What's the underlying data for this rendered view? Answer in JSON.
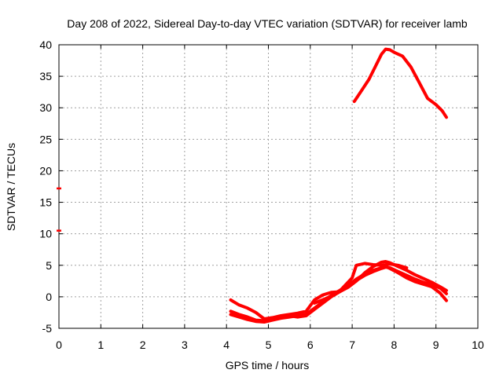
{
  "chart_data": {
    "type": "scatter",
    "title": "Day 208 of 2022, Sidereal Day-to-day VTEC variation (SDTVAR) for receiver lamb",
    "xlabel": "GPS time / hours",
    "ylabel": "SDTVAR / TECUs",
    "xlim": [
      0,
      10
    ],
    "ylim": [
      -5,
      40
    ],
    "x_ticks": [
      0,
      1,
      2,
      3,
      4,
      5,
      6,
      7,
      8,
      9,
      10
    ],
    "y_ticks": [
      -5,
      0,
      5,
      10,
      15,
      20,
      25,
      30,
      35,
      40
    ],
    "grid": true,
    "series_color": "#ff0000",
    "series": [
      {
        "name": "isolated-1",
        "x": [
          0.0
        ],
        "y": [
          17.2
        ]
      },
      {
        "name": "isolated-2",
        "x": [
          0.0
        ],
        "y": [
          10.5
        ]
      },
      {
        "name": "high-arc",
        "x": [
          7.05,
          7.2,
          7.4,
          7.55,
          7.7,
          7.8,
          7.9,
          8.0,
          8.2,
          8.4,
          8.6,
          8.8,
          9.0,
          9.15,
          9.25
        ],
        "y": [
          31.0,
          32.5,
          34.5,
          36.5,
          38.5,
          39.3,
          39.2,
          38.8,
          38.2,
          36.5,
          34.0,
          31.5,
          30.5,
          29.5,
          28.5
        ]
      },
      {
        "name": "low-track-1",
        "x": [
          4.1,
          4.3,
          4.5,
          4.7,
          4.9,
          5.1,
          5.3,
          5.5,
          5.7,
          5.9,
          6.1,
          6.3,
          6.5,
          6.7,
          6.9,
          7.1,
          7.3,
          7.5,
          7.7,
          7.8,
          7.9,
          8.1,
          8.3,
          8.5,
          8.7,
          8.9,
          9.1,
          9.25
        ],
        "y": [
          -0.5,
          -1.3,
          -1.8,
          -2.5,
          -3.5,
          -3.3,
          -3.0,
          -2.8,
          -2.6,
          -2.3,
          -0.5,
          0.3,
          0.7,
          0.8,
          1.5,
          2.5,
          3.8,
          4.8,
          5.5,
          5.6,
          5.4,
          4.8,
          4.2,
          3.5,
          2.9,
          2.3,
          1.6,
          1.0
        ]
      },
      {
        "name": "low-track-2",
        "x": [
          4.1,
          4.3,
          4.5,
          4.7,
          4.9,
          5.1,
          5.3,
          5.5,
          5.7,
          5.9,
          6.1,
          6.3,
          6.5,
          6.7,
          6.9,
          7.1,
          7.3,
          7.5,
          7.7,
          7.8,
          7.9,
          8.1,
          8.3,
          8.5,
          8.7,
          8.9,
          9.1,
          9.25
        ],
        "y": [
          -2.3,
          -2.8,
          -3.2,
          -3.7,
          -3.8,
          -3.5,
          -3.2,
          -3.0,
          -3.2,
          -3.0,
          -2.0,
          -1.0,
          0.0,
          0.8,
          1.6,
          2.6,
          3.4,
          4.0,
          4.5,
          4.7,
          4.6,
          4.0,
          3.4,
          2.8,
          2.3,
          1.9,
          1.4,
          0.5
        ]
      },
      {
        "name": "low-track-3",
        "x": [
          4.1,
          4.3,
          4.5,
          4.7,
          4.9,
          5.1,
          5.3,
          5.5,
          5.7,
          5.9,
          6.1,
          6.3,
          6.5,
          6.7,
          6.9,
          7.1,
          7.3,
          7.5,
          7.7,
          7.8,
          7.9,
          8.1,
          8.3,
          8.5,
          8.7,
          8.9,
          9.1,
          9.25
        ],
        "y": [
          -2.8,
          -3.2,
          -3.6,
          -3.9,
          -4.0,
          -3.7,
          -3.4,
          -3.2,
          -3.0,
          -2.8,
          -1.8,
          -0.8,
          0.2,
          1.0,
          1.8,
          2.8,
          3.6,
          4.2,
          4.6,
          4.8,
          4.5,
          3.8,
          3.0,
          2.4,
          2.0,
          1.6,
          0.6,
          -0.6
        ]
      },
      {
        "name": "low-track-4",
        "x": [
          6.1,
          6.4,
          6.7,
          7.0,
          7.1,
          7.3,
          7.5,
          7.7,
          7.9,
          8.1,
          8.3
        ],
        "y": [
          -1.0,
          -0.2,
          0.9,
          3.0,
          5.0,
          5.3,
          5.1,
          5.0,
          5.2,
          5.0,
          4.6
        ]
      }
    ]
  }
}
